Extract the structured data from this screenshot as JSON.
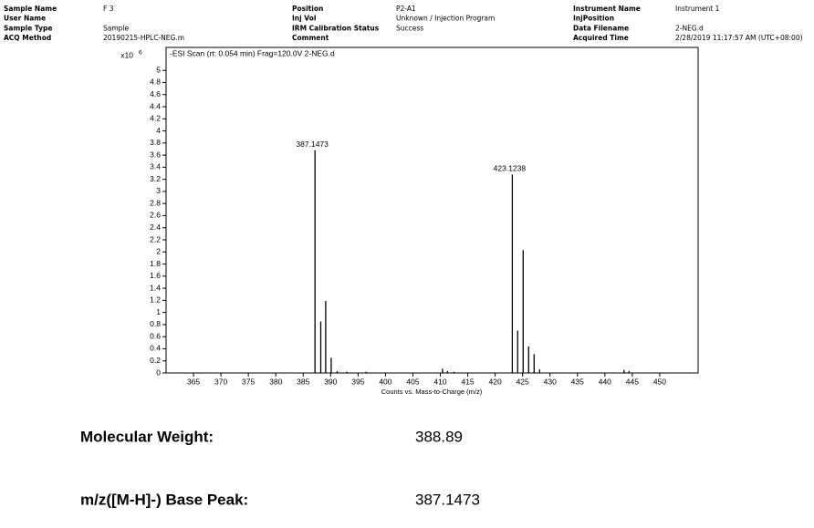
{
  "header": {
    "rows": [
      [
        {
          "label": "Sample Name",
          "value": "F 3"
        },
        {
          "label": "Position",
          "value": "P2-A1"
        },
        {
          "label": "Instrument Name",
          "value": "Instrument 1"
        }
      ],
      [
        {
          "label": "User Name"
        },
        {
          "label": "Inj Vol",
          "value": "Unknown / Injection Program"
        },
        {
          "label": "InjPosition"
        }
      ],
      [
        {
          "label": "Sample Type",
          "value": "Sample"
        },
        {
          "label": "IRM Calibration Status",
          "value": "Success"
        },
        {
          "label": "Data Filename",
          "value": "2-NEG.d"
        }
      ],
      [
        {
          "label": "ACQ Method",
          "value": "20190215-HPLC-NEG.m"
        },
        {
          "label": "Comment"
        },
        {
          "label": "Acquired Time",
          "value": "2/28/2019 11:17:57 AM (UTC+08:00)"
        }
      ]
    ]
  },
  "chart_data": {
    "type": "stick",
    "title": "-ESI Scan (rt: 0.054 min) Frag=120.0V 2-NEG.d",
    "x_label": "Counts vs. Mass-to-Charge (m/z)",
    "y_scale_label": "x10",
    "y_scale_exponent": 6,
    "x": [
      387.1473,
      388.2,
      389.1,
      390.1,
      391.2,
      393.0,
      396.5,
      410.4,
      411.3,
      412.5,
      423.1238,
      424.1,
      425.1,
      426.1,
      427.1,
      428.1,
      443.5,
      444.4
    ],
    "values": [
      3.68,
      0.85,
      1.19,
      0.25,
      0.03,
      0.02,
      0.02,
      0.07,
      0.03,
      0.02,
      3.28,
      0.7,
      2.03,
      0.44,
      0.31,
      0.06,
      0.05,
      0.03
    ],
    "labeled": [
      true,
      false,
      false,
      false,
      false,
      false,
      false,
      false,
      false,
      false,
      true,
      false,
      false,
      false,
      false,
      false,
      false,
      false
    ],
    "color": "#000000",
    "xlim": [
      360,
      457
    ],
    "ylim": [
      0,
      5.38
    ],
    "xticks": [
      365,
      370,
      375,
      380,
      385,
      390,
      395,
      400,
      405,
      410,
      415,
      420,
      425,
      430,
      435,
      440,
      445,
      450
    ],
    "yticks": [
      0,
      0.2,
      0.4,
      0.6,
      0.8,
      1,
      1.2,
      1.4,
      1.6,
      1.8,
      2,
      2.2,
      2.4,
      2.6,
      2.8,
      3,
      3.2,
      3.4,
      3.6,
      3.8,
      4,
      4.2,
      4.4,
      4.6,
      4.8,
      5
    ]
  },
  "summary": [
    {
      "label": "Molecular Weight:",
      "value": "388.89"
    },
    {
      "label": "m/z([M-H]-) Base Peak:",
      "value": "387.1473"
    }
  ]
}
